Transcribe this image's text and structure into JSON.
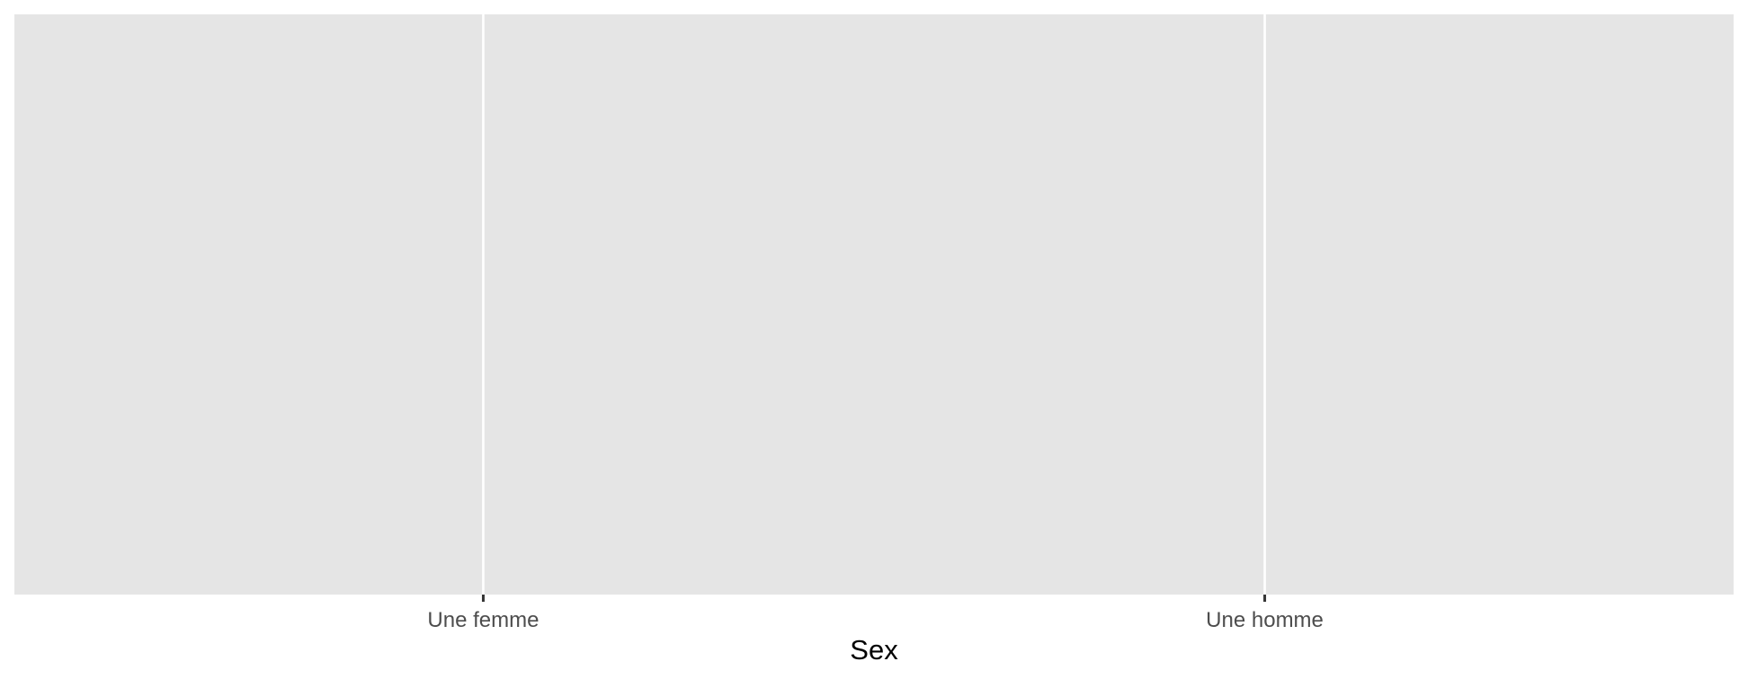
{
  "chart_data": {
    "type": "bar",
    "categories": [
      "Une femme",
      "Une homme"
    ],
    "series": [],
    "title": "",
    "xlabel": "Sex",
    "ylabel": "",
    "grid": true,
    "legend": "none",
    "colors": {
      "panel_background": "#e5e5e5",
      "grid_line": "#ffffff",
      "tick_mark": "#333333",
      "tick_label": "#4d4d4d",
      "axis_title": "#000000"
    }
  }
}
